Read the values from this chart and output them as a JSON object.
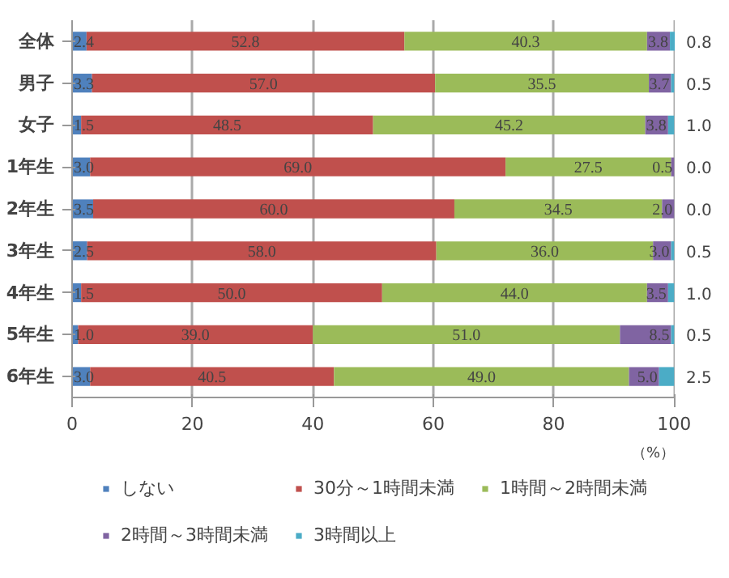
{
  "chart_data": {
    "type": "bar",
    "orientation": "horizontal",
    "stacked": true,
    "xlabel": "（%）",
    "categories": [
      "全体",
      "男子",
      "女子",
      "1年生",
      "2年生",
      "3年生",
      "4年生",
      "5年生",
      "6年生"
    ],
    "series": [
      {
        "name": "しない",
        "color": "#4f81bd",
        "values": [
          2.4,
          3.3,
          1.5,
          3.0,
          3.5,
          2.5,
          1.5,
          1.0,
          3.0
        ],
        "value_labels": [
          "2.4",
          "3.3",
          "1.5",
          "3.0",
          "3.5",
          "2.5",
          "1.5",
          "1.0",
          "3.0"
        ]
      },
      {
        "name": "30分～1時間未満",
        "color": "#c0504d",
        "values": [
          52.8,
          57.0,
          48.5,
          69.0,
          60.0,
          58.0,
          50.0,
          39.0,
          40.5
        ],
        "value_labels": [
          "52.8",
          "57.0",
          "48.5",
          "69.0",
          "60.0",
          "58.0",
          "50.0",
          "39.0",
          "40.5"
        ]
      },
      {
        "name": "1時間～2時間未満",
        "color": "#9bbb59",
        "values": [
          40.3,
          35.5,
          45.2,
          27.5,
          34.5,
          36.0,
          44.0,
          51.0,
          49.0
        ],
        "value_labels": [
          "40.3",
          "35.5",
          "45.2",
          "27.5",
          "34.5",
          "36.0",
          "44.0",
          "51.0",
          "49.0"
        ]
      },
      {
        "name": "2時間～3時間未満",
        "color": "#8064a2",
        "values": [
          3.8,
          3.7,
          3.8,
          0.5,
          2.0,
          3.0,
          3.5,
          8.5,
          5.0
        ],
        "value_labels": [
          "3.8",
          "3.7",
          "3.8",
          "0.5",
          "2.0",
          "3.0",
          "3.5",
          "8.5",
          "5.0"
        ]
      },
      {
        "name": "3時間以上",
        "color": "#4bacc6",
        "values": [
          0.8,
          0.5,
          1.0,
          0.0,
          0.0,
          0.5,
          1.0,
          0.5,
          2.5
        ],
        "value_labels": [
          "0.8",
          "0.5",
          "1.0",
          "0.0",
          "0.0",
          "0.5",
          "1.0",
          "0.5",
          "2.5"
        ]
      }
    ],
    "xlim": [
      0,
      100.1
    ],
    "xticks": [
      0,
      20,
      40,
      60,
      80,
      100
    ],
    "grid": "x",
    "legend": "bottom"
  }
}
